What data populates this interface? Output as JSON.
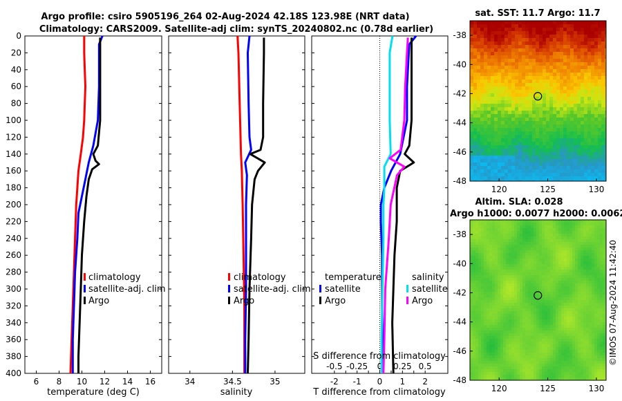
{
  "header": {
    "title_line1": "Argo profile: csiro 5905196_264 02-Aug-2024 42.18S 123.98E (NRT data)",
    "title_line2": "Climatology: CARS2009. Satellite-adj clim: synTS_20240802.nc (0.78d earlier)"
  },
  "colors": {
    "climatology": "#ff0000",
    "satellite_adj": "#0000ff",
    "argo": "#000000",
    "sal_satellite": "#00e0f0",
    "sal_argo": "#ff00ff"
  },
  "chart_data": [
    {
      "type": "line",
      "id": "temperature",
      "xlabel": "temperature (deg C)",
      "ylabel": "",
      "xlim": [
        5,
        17
      ],
      "ylim": [
        400,
        0
      ],
      "xticks": [
        6,
        8,
        10,
        12,
        14,
        16
      ],
      "yticks": [
        0,
        20,
        40,
        60,
        80,
        100,
        120,
        140,
        160,
        180,
        200,
        220,
        240,
        260,
        280,
        300,
        320,
        340,
        360,
        380,
        400
      ],
      "legend": [
        "climatology",
        "satellite-adj. clim",
        "Argo"
      ],
      "series": [
        {
          "name": "climatology",
          "color": "#ff0000",
          "depth": [
            0,
            20,
            60,
            100,
            120,
            140,
            160,
            180,
            200,
            240,
            280,
            320,
            360,
            400
          ],
          "values": [
            10.2,
            10.2,
            10.3,
            10.2,
            10.1,
            9.9,
            9.7,
            9.6,
            9.5,
            9.4,
            9.3,
            9.2,
            9.1,
            9.0
          ]
        },
        {
          "name": "satellite-adj. clim",
          "color": "#0000ff",
          "depth": [
            0,
            10,
            60,
            100,
            130,
            150,
            170,
            190,
            210,
            240,
            280,
            320,
            360,
            400
          ],
          "values": [
            11.8,
            11.5,
            11.5,
            11.4,
            11.0,
            10.6,
            10.3,
            10.0,
            9.7,
            9.6,
            9.4,
            9.3,
            9.2,
            9.2
          ]
        },
        {
          "name": "Argo",
          "color": "#000000",
          "depth": [
            2,
            10,
            60,
            100,
            130,
            140,
            148,
            152,
            158,
            170,
            190,
            220,
            260,
            300,
            340,
            380,
            400
          ],
          "values": [
            11.6,
            11.6,
            11.6,
            11.6,
            11.4,
            11.0,
            11.2,
            11.5,
            10.9,
            10.6,
            10.4,
            10.2,
            10.0,
            9.9,
            9.8,
            9.7,
            9.7
          ]
        }
      ]
    },
    {
      "type": "line",
      "id": "salinity",
      "xlabel": "salinity",
      "xlim": [
        33.75,
        35.35
      ],
      "ylim": [
        400,
        0
      ],
      "xticks": [
        34,
        34.5,
        35
      ],
      "legend": [
        "climatology",
        "satellite-adj. clim",
        "Argo"
      ],
      "series": [
        {
          "name": "climatology",
          "color": "#ff0000",
          "depth": [
            0,
            20,
            60,
            100,
            140,
            160,
            200,
            260,
            320,
            400
          ],
          "values": [
            34.56,
            34.57,
            34.58,
            34.59,
            34.6,
            34.61,
            34.62,
            34.63,
            34.64,
            34.64
          ]
        },
        {
          "name": "satellite-adj. clim",
          "color": "#0000ff",
          "depth": [
            0,
            20,
            80,
            120,
            135,
            150,
            165,
            200,
            240,
            300,
            360,
            400
          ],
          "values": [
            34.7,
            34.68,
            34.69,
            34.7,
            34.72,
            34.65,
            34.67,
            34.66,
            34.66,
            34.66,
            34.65,
            34.65
          ]
        },
        {
          "name": "Argo",
          "color": "#000000",
          "depth": [
            2,
            20,
            80,
            120,
            135,
            140,
            150,
            160,
            170,
            200,
            240,
            300,
            360,
            400
          ],
          "values": [
            34.87,
            34.87,
            34.86,
            34.86,
            34.83,
            34.71,
            34.88,
            34.8,
            34.76,
            34.73,
            34.72,
            34.7,
            34.69,
            34.68
          ]
        }
      ]
    },
    {
      "type": "line",
      "id": "difference",
      "xlabel": "T difference from climatology",
      "top_xlabel": "S difference from climatology",
      "xlim": [
        -3,
        3
      ],
      "ylim": [
        400,
        0
      ],
      "xticks": [
        -2,
        -1.5,
        -1,
        -0.5,
        0,
        0.5,
        1,
        1.5,
        2
      ],
      "xticklabels": [
        "-2",
        "",
        "-1",
        "",
        "0",
        "",
        "1",
        "",
        "2"
      ],
      "top_xticks": [
        -0.5,
        -0.25,
        0,
        0.25,
        0.5
      ],
      "top_xticklabels": [
        "-0.5",
        "-0.25",
        "0",
        "0.25",
        "0.5"
      ],
      "legend_temperature": {
        "title": "temperature",
        "items": [
          "satellite",
          "Argo"
        ]
      },
      "legend_salinity": {
        "title": "salinity",
        "items": [
          "satellite",
          "Argo"
        ]
      },
      "series": [
        {
          "name": "T satellite",
          "color": "#0000ff",
          "depth": [
            0,
            10,
            60,
            100,
            140,
            160,
            180,
            200,
            220,
            260,
            320,
            400
          ],
          "values": [
            1.6,
            1.3,
            1.2,
            1.2,
            0.9,
            0.5,
            0.2,
            0.05,
            0.05,
            0.1,
            0.1,
            0.15
          ]
        },
        {
          "name": "T Argo",
          "color": "#000000",
          "depth": [
            2,
            20,
            60,
            100,
            130,
            140,
            150,
            160,
            180,
            220,
            260,
            300,
            340,
            400
          ],
          "values": [
            1.4,
            1.4,
            1.4,
            1.4,
            1.3,
            1.1,
            1.5,
            0.9,
            0.75,
            0.75,
            0.65,
            0.6,
            0.55,
            0.6
          ]
        },
        {
          "name": "S satellite",
          "color": "#00e0f0",
          "depth": [
            0,
            20,
            60,
            100,
            140,
            155,
            180,
            200,
            240,
            300,
            360,
            400
          ],
          "values": [
            0.14,
            0.11,
            0.11,
            0.11,
            0.12,
            0.05,
            0.05,
            0.04,
            0.04,
            0.03,
            0.02,
            0.02
          ]
        },
        {
          "name": "S Argo",
          "color": "#ff00ff",
          "depth": [
            2,
            20,
            60,
            100,
            135,
            145,
            155,
            165,
            200,
            240,
            300,
            360,
            400
          ],
          "values": [
            0.31,
            0.3,
            0.28,
            0.27,
            0.23,
            0.11,
            0.27,
            0.19,
            0.12,
            0.1,
            0.06,
            0.05,
            0.04
          ]
        }
      ]
    },
    {
      "type": "heatmap",
      "id": "sst_map",
      "title": "sat. SST: 11.7 Argo: 11.7",
      "xlim": [
        117,
        131
      ],
      "ylim": [
        -48,
        -37
      ],
      "xticks": [
        120,
        125,
        130
      ],
      "yticks": [
        -38,
        -40,
        -42,
        -44,
        -46,
        -48
      ],
      "argo_position": [
        123.98,
        -42.18
      ]
    },
    {
      "type": "heatmap",
      "id": "sla_map",
      "title_line1": "Altim. SLA: 0.028",
      "title_line2": "Argo h1000: 0.0077 h2000: 0.0062",
      "xlim": [
        117,
        131
      ],
      "ylim": [
        -48,
        -37
      ],
      "xticks": [
        120,
        125,
        130
      ],
      "yticks": [
        -38,
        -40,
        -42,
        -44,
        -46,
        -48
      ],
      "argo_position": [
        123.98,
        -42.18
      ]
    }
  ],
  "credit": "©IMOS 07-Aug-2024 11:42:40"
}
